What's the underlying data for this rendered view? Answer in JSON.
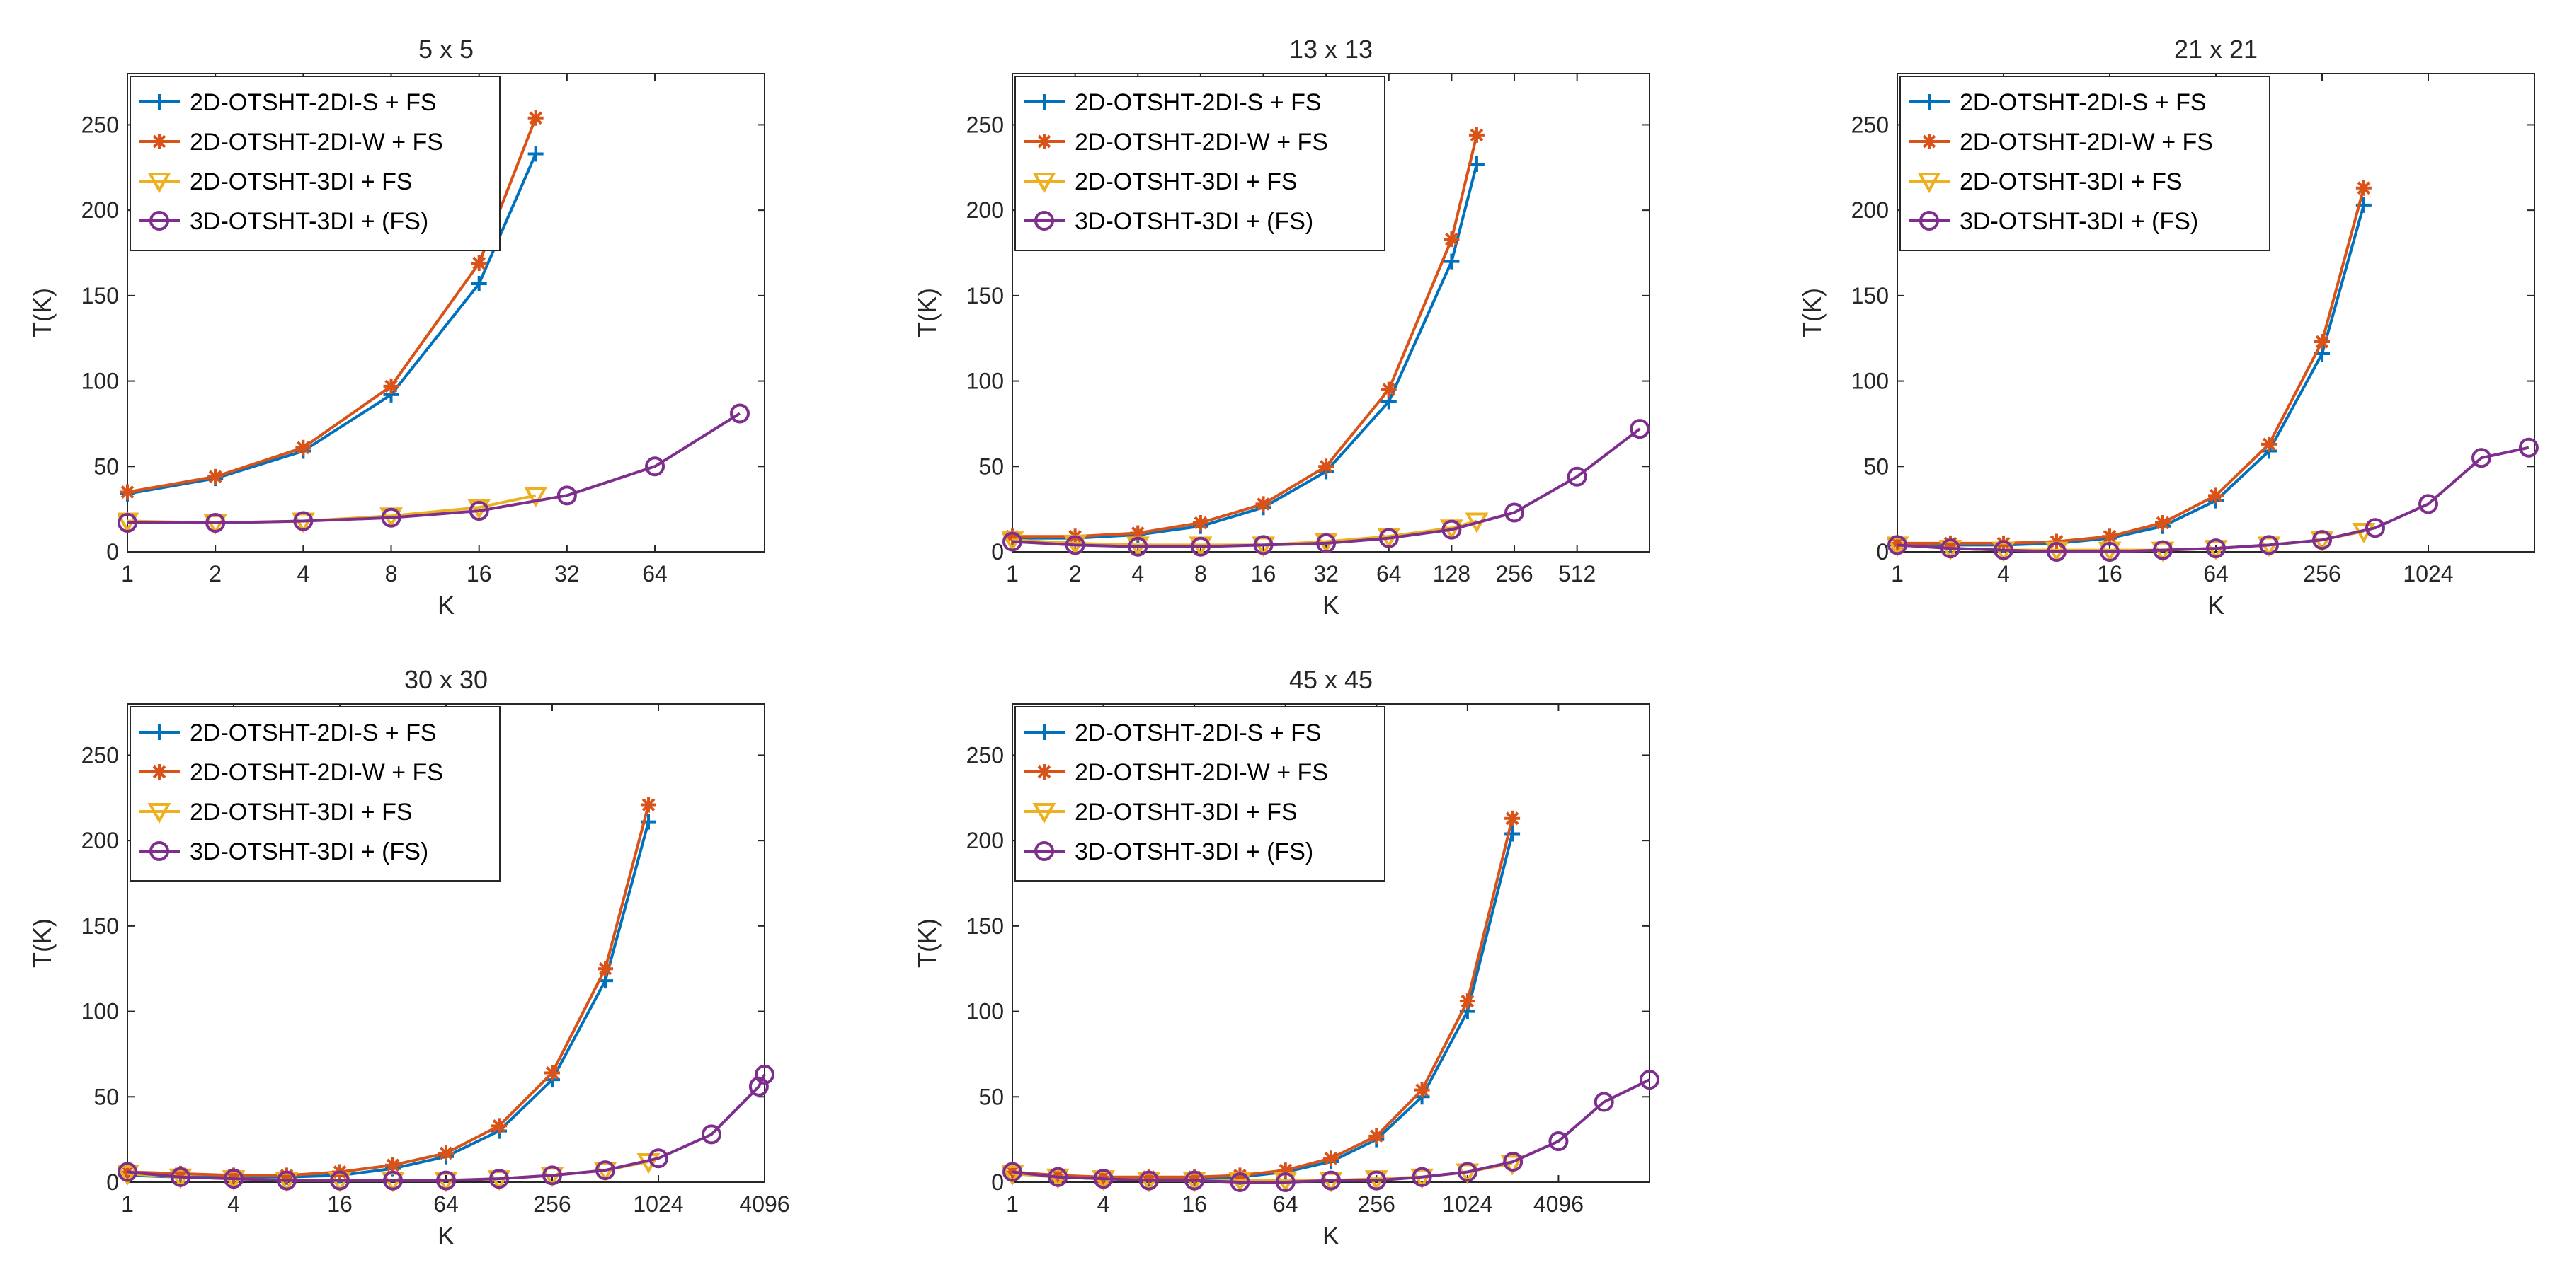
{
  "figure": {
    "description_free": true
  },
  "chart_data": [
    {
      "type": "line",
      "title": "5 x 5",
      "xlabel": "K",
      "ylabel": "T(K)",
      "xscale": "log2",
      "xlim": [
        1,
        152
      ],
      "ylim": [
        0,
        280
      ],
      "xticks": [
        1,
        2,
        4,
        8,
        16,
        32,
        64
      ],
      "xtick_labels": [
        "1",
        "2",
        "4",
        "8",
        "16",
        "32",
        "64"
      ],
      "yticks": [
        0,
        50,
        100,
        150,
        200,
        250
      ],
      "ytick_labels": [
        "0",
        "50",
        "100",
        "150",
        "200",
        "250"
      ],
      "legend": "top-left",
      "series": [
        {
          "name": "2D-OTSHT-2DI-S + FS",
          "color": "#0072BD",
          "marker": "plus",
          "x": [
            1,
            2,
            4,
            8,
            16,
            25
          ],
          "y": [
            34,
            43,
            59,
            92,
            157,
            233
          ]
        },
        {
          "name": "2D-OTSHT-2DI-W + FS",
          "color": "#D95319",
          "marker": "asterisk",
          "x": [
            1,
            2,
            4,
            8,
            16,
            25
          ],
          "y": [
            35,
            44,
            61,
            97,
            169,
            254
          ]
        },
        {
          "name": "2D-OTSHT-3DI + FS",
          "color": "#EDB120",
          "marker": "triangle-down",
          "x": [
            1,
            2,
            4,
            8,
            16,
            25
          ],
          "y": [
            18,
            17,
            18,
            21,
            26,
            33
          ]
        },
        {
          "name": "3D-OTSHT-3DI + (FS)",
          "color": "#7E2F8E",
          "marker": "circle",
          "x": [
            1,
            2,
            4,
            8,
            16,
            32,
            64,
            125
          ],
          "y": [
            17,
            17,
            18,
            20,
            24,
            33,
            50,
            81
          ]
        }
      ]
    },
    {
      "type": "line",
      "title": "13 x 13",
      "xlabel": "K",
      "ylabel": "T(K)",
      "xscale": "log2",
      "xlim": [
        1,
        1140
      ],
      "ylim": [
        0,
        280
      ],
      "xticks": [
        1,
        2,
        4,
        8,
        16,
        32,
        64,
        128,
        256,
        512
      ],
      "xtick_labels": [
        "1",
        "2",
        "4",
        "8",
        "16",
        "32",
        "64",
        "128",
        "256",
        "512"
      ],
      "yticks": [
        0,
        50,
        100,
        150,
        200,
        250
      ],
      "ytick_labels": [
        "0",
        "50",
        "100",
        "150",
        "200",
        "250"
      ],
      "legend": "top-left",
      "series": [
        {
          "name": "2D-OTSHT-2DI-S + FS",
          "color": "#0072BD",
          "marker": "plus",
          "x": [
            1,
            2,
            4,
            8,
            16,
            32,
            64,
            128,
            169
          ],
          "y": [
            8,
            8,
            10,
            15,
            26,
            47,
            88,
            170,
            227
          ]
        },
        {
          "name": "2D-OTSHT-2DI-W + FS",
          "color": "#D95319",
          "marker": "asterisk",
          "x": [
            1,
            2,
            4,
            8,
            16,
            32,
            64,
            128,
            169
          ],
          "y": [
            9,
            9,
            11,
            17,
            28,
            50,
            95,
            183,
            244
          ]
        },
        {
          "name": "2D-OTSHT-3DI + FS",
          "color": "#EDB120",
          "marker": "triangle-down",
          "x": [
            1,
            2,
            4,
            8,
            16,
            32,
            64,
            128,
            169
          ],
          "y": [
            7,
            5,
            4,
            4,
            4,
            6,
            9,
            14,
            18
          ]
        },
        {
          "name": "3D-OTSHT-3DI + (FS)",
          "color": "#7E2F8E",
          "marker": "circle",
          "x": [
            1,
            2,
            4,
            8,
            16,
            32,
            64,
            128,
            256,
            512,
            1024
          ],
          "y": [
            6,
            4,
            3,
            3,
            4,
            5,
            8,
            13,
            23,
            44,
            72
          ]
        }
      ]
    },
    {
      "type": "line",
      "title": "21 x 21",
      "xlabel": "K",
      "ylabel": "T(K)",
      "xscale": "log2",
      "xlim": [
        1,
        4096
      ],
      "ylim": [
        0,
        280
      ],
      "xticks": [
        1,
        4,
        16,
        64,
        256,
        1024
      ],
      "xtick_labels": [
        "1",
        "4",
        "16",
        "64",
        "256",
        "1024"
      ],
      "yticks": [
        0,
        50,
        100,
        150,
        200,
        250
      ],
      "ytick_labels": [
        "0",
        "50",
        "100",
        "150",
        "200",
        "250"
      ],
      "legend": "top-left",
      "series": [
        {
          "name": "2D-OTSHT-2DI-S + FS",
          "color": "#0072BD",
          "marker": "plus",
          "x": [
            1,
            2,
            4,
            8,
            16,
            32,
            64,
            128,
            256,
            441
          ],
          "y": [
            4,
            4,
            4,
            5,
            8,
            15,
            30,
            59,
            116,
            203
          ]
        },
        {
          "name": "2D-OTSHT-2DI-W + FS",
          "color": "#D95319",
          "marker": "asterisk",
          "x": [
            1,
            2,
            4,
            8,
            16,
            32,
            64,
            128,
            256,
            441
          ],
          "y": [
            5,
            5,
            5,
            6,
            9,
            17,
            33,
            63,
            123,
            213
          ]
        },
        {
          "name": "2D-OTSHT-3DI + FS",
          "color": "#EDB120",
          "marker": "triangle-down",
          "x": [
            1,
            2,
            4,
            8,
            16,
            32,
            64,
            128,
            256,
            441
          ],
          "y": [
            4,
            2,
            1,
            1,
            1,
            1,
            2,
            4,
            7,
            12
          ]
        },
        {
          "name": "3D-OTSHT-3DI + (FS)",
          "color": "#7E2F8E",
          "marker": "circle",
          "x": [
            1,
            2,
            4,
            8,
            16,
            32,
            64,
            128,
            256,
            512,
            1024,
            2048,
            3800
          ],
          "y": [
            4,
            2,
            1,
            0,
            0,
            1,
            2,
            4,
            7,
            14,
            28,
            55,
            61
          ]
        }
      ]
    },
    {
      "type": "line",
      "title": "30 x 30",
      "xlabel": "K",
      "ylabel": "T(K)",
      "xscale": "log2",
      "xlim": [
        1,
        4096
      ],
      "ylim": [
        0,
        280
      ],
      "xticks": [
        1,
        4,
        16,
        64,
        256,
        1024,
        4096
      ],
      "xtick_labels": [
        "1",
        "4",
        "16",
        "64",
        "256",
        "1024",
        "4096"
      ],
      "yticks": [
        0,
        50,
        100,
        150,
        200,
        250
      ],
      "ytick_labels": [
        "0",
        "50",
        "100",
        "150",
        "200",
        "250"
      ],
      "legend": "top-left",
      "series": [
        {
          "name": "2D-OTSHT-2DI-S + FS",
          "color": "#0072BD",
          "marker": "plus",
          "x": [
            1,
            2,
            4,
            8,
            16,
            32,
            64,
            128,
            256,
            512,
            900
          ],
          "y": [
            4,
            3,
            3,
            3,
            4,
            8,
            15,
            30,
            60,
            118,
            211
          ]
        },
        {
          "name": "2D-OTSHT-2DI-W + FS",
          "color": "#D95319",
          "marker": "asterisk",
          "x": [
            1,
            2,
            4,
            8,
            16,
            32,
            64,
            128,
            256,
            512,
            900
          ],
          "y": [
            6,
            5,
            4,
            4,
            6,
            10,
            17,
            33,
            64,
            125,
            221
          ]
        },
        {
          "name": "2D-OTSHT-3DI + FS",
          "color": "#EDB120",
          "marker": "triangle-down",
          "x": [
            1,
            2,
            4,
            8,
            16,
            32,
            64,
            128,
            256,
            512,
            900
          ],
          "y": [
            5,
            3,
            2,
            1,
            1,
            1,
            1,
            2,
            4,
            7,
            12
          ]
        },
        {
          "name": "3D-OTSHT-3DI + (FS)",
          "color": "#7E2F8E",
          "marker": "circle",
          "x": [
            1,
            2,
            4,
            8,
            16,
            32,
            64,
            128,
            256,
            512,
            1024,
            2048,
            3800,
            4096
          ],
          "y": [
            6,
            3,
            2,
            1,
            1,
            1,
            1,
            2,
            4,
            7,
            14,
            28,
            56,
            63
          ]
        }
      ]
    },
    {
      "type": "line",
      "title": "45 x 45",
      "xlabel": "K",
      "ylabel": "T(K)",
      "xscale": "log2",
      "xlim": [
        1,
        16384
      ],
      "ylim": [
        0,
        280
      ],
      "xticks": [
        1,
        4,
        16,
        64,
        256,
        1024,
        4096
      ],
      "xtick_labels": [
        "1",
        "4",
        "16",
        "64",
        "256",
        "1024",
        "4096"
      ],
      "yticks": [
        0,
        50,
        100,
        150,
        200,
        250
      ],
      "ytick_labels": [
        "0",
        "50",
        "100",
        "150",
        "200",
        "250"
      ],
      "legend": "top-left",
      "series": [
        {
          "name": "2D-OTSHT-2DI-S + FS",
          "color": "#0072BD",
          "marker": "plus",
          "x": [
            1,
            2,
            4,
            8,
            16,
            32,
            64,
            128,
            256,
            512,
            1024,
            2025
          ],
          "y": [
            5,
            3,
            2,
            2,
            2,
            3,
            6,
            12,
            25,
            50,
            100,
            204
          ]
        },
        {
          "name": "2D-OTSHT-2DI-W + FS",
          "color": "#D95319",
          "marker": "asterisk",
          "x": [
            1,
            2,
            4,
            8,
            16,
            32,
            64,
            128,
            256,
            512,
            1024,
            2025
          ],
          "y": [
            6,
            4,
            3,
            3,
            3,
            4,
            7,
            14,
            27,
            54,
            106,
            213
          ]
        },
        {
          "name": "2D-OTSHT-3DI + FS",
          "color": "#EDB120",
          "marker": "triangle-down",
          "x": [
            1,
            2,
            4,
            8,
            16,
            32,
            64,
            128,
            256,
            512,
            1024,
            2025
          ],
          "y": [
            5,
            3,
            2,
            1,
            1,
            1,
            1,
            1,
            2,
            3,
            6,
            11
          ]
        },
        {
          "name": "3D-OTSHT-3DI + (FS)",
          "color": "#7E2F8E",
          "marker": "circle",
          "x": [
            1,
            2,
            4,
            8,
            16,
            32,
            64,
            128,
            256,
            512,
            1024,
            2048,
            4096,
            8192,
            16384
          ],
          "y": [
            6,
            3,
            2,
            1,
            1,
            0,
            0,
            1,
            1,
            3,
            6,
            12,
            24,
            47,
            60
          ]
        }
      ]
    }
  ]
}
